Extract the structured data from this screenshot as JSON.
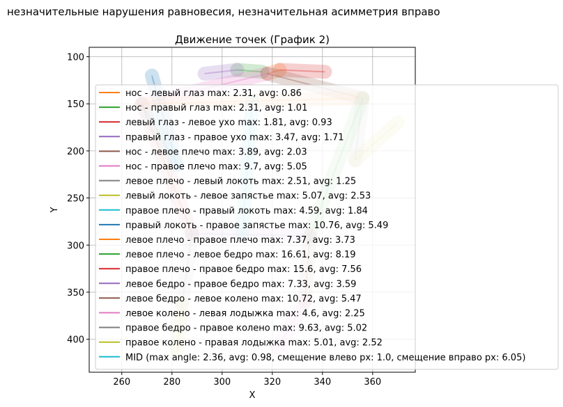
{
  "page": {
    "suptitle": "незначительные нарушения равновесия, незначительная асимметрия вправо"
  },
  "chart_data": {
    "type": "line",
    "title": "Движение точек (График 2)",
    "xlabel": "X",
    "ylabel": "Y",
    "xlim": [
      247,
      377
    ],
    "ylim": [
      435,
      90
    ],
    "y_inverted": true,
    "x_ticks": [
      260,
      280,
      300,
      320,
      340,
      360
    ],
    "y_ticks": [
      100,
      150,
      200,
      250,
      300,
      350,
      400
    ],
    "grid": true,
    "legend_placement": "right, overlapping plot",
    "series": [
      {
        "name": "нос - левый глаз max: 2.31, avg: 0.86",
        "color": "#ff7f0e",
        "x": [
          318,
          323
        ],
        "y": [
          118,
          114
        ]
      },
      {
        "name": "нос - правый глаз max: 2.31, avg: 1.01",
        "color": "#2ca02c",
        "x": [
          306,
          316
        ],
        "y": [
          114,
          116
        ]
      },
      {
        "name": "левый глаз - левое ухо max: 1.81, avg: 0.93",
        "color": "#d62728",
        "x": [
          323,
          341
        ],
        "y": [
          114,
          116
        ]
      },
      {
        "name": "правый глаз - правое ухо max: 3.47, avg: 1.71",
        "color": "#9467bd",
        "x": [
          293,
          306
        ],
        "y": [
          118,
          114
        ]
      },
      {
        "name": "нос - левое плечо max: 3.89, avg: 2.03",
        "color": "#8c564b",
        "x": [
          318,
          356
        ],
        "y": [
          118,
          144
        ]
      },
      {
        "name": "нос - правое плечо max: 9.7, avg: 5.05",
        "color": "#e377c2",
        "x": [
          318,
          268
        ],
        "y": [
          118,
          150
        ]
      },
      {
        "name": "левое плечо - левый локоть max: 2.51, avg: 1.25",
        "color": "#7f7f7f",
        "x": [
          356,
          353
        ],
        "y": [
          144,
          210
        ]
      },
      {
        "name": "левый локоть - левое запястье max: 5.07, avg: 2.53",
        "color": "#bcbd22",
        "x": [
          353,
          370
        ],
        "y": [
          210,
          170
        ]
      },
      {
        "name": "правое плечо - правый локоть max: 4.59, avg: 1.84",
        "color": "#17becf",
        "x": [
          268,
          282
        ],
        "y": [
          150,
          215
        ]
      },
      {
        "name": "правый локоть - правое запястье max: 10.76, avg: 5.49",
        "color": "#1f77b4",
        "x": [
          282,
          272
        ],
        "y": [
          215,
          120
        ]
      },
      {
        "name": "левое плечо - правое плечо max: 7.37, avg: 3.73",
        "color": "#ff7f0e",
        "x": [
          356,
          268
        ],
        "y": [
          144,
          150
        ]
      },
      {
        "name": "левое плечо - левое бедро max: 16.61, avg: 8.19",
        "color": "#2ca02c",
        "x": [
          356,
          335
        ],
        "y": [
          144,
          290
        ]
      },
      {
        "name": "правое плечо - правое бедро max: 15.6, avg: 7.56",
        "color": "#d62728",
        "x": [
          268,
          288
        ],
        "y": [
          150,
          288
        ]
      },
      {
        "name": "левое бедро - правое бедро max: 7.33, avg: 3.59",
        "color": "#9467bd",
        "x": [
          335,
          288
        ],
        "y": [
          290,
          288
        ]
      },
      {
        "name": "левое бедро - левое колено max: 10.72, avg: 5.47",
        "color": "#8c564b",
        "x": [
          335,
          333
        ],
        "y": [
          290,
          360
        ]
      },
      {
        "name": "левое колено - левая лодыжка max: 4.6, avg: 2.25",
        "color": "#e377c2",
        "x": [
          333,
          322
        ],
        "y": [
          360,
          410
        ]
      },
      {
        "name": "правое бедро - правое колено max: 9.63, avg: 5.02",
        "color": "#7f7f7f",
        "x": [
          288,
          284
        ],
        "y": [
          288,
          362
        ]
      },
      {
        "name": "правое колено - правая лодыжка max: 5.01, avg: 2.52",
        "color": "#bcbd22",
        "x": [
          284,
          282
        ],
        "y": [
          362,
          413
        ]
      },
      {
        "name": "MID (max angle: 2.36, avg: 0.98, смещение влево px: 1.0, смещение вправо px: 6.05)",
        "color": "#17becf",
        "x": [
          312,
          308
        ],
        "y": [
          147,
          289
        ]
      }
    ]
  }
}
